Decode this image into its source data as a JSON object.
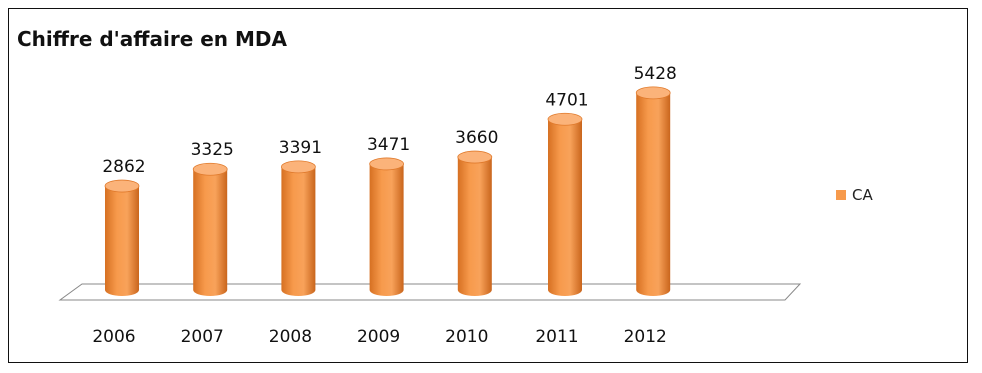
{
  "chart_data": {
    "type": "bar",
    "title": "Chiffre d'affaire en MDA",
    "categories": [
      "2006",
      "2007",
      "2008",
      "2009",
      "2010",
      "2011",
      "2012"
    ],
    "series": [
      {
        "name": "CA",
        "values": [
          2862,
          3325,
          3391,
          3471,
          3660,
          4701,
          5428
        ]
      }
    ],
    "xlabel": "",
    "ylabel": "",
    "ylim": [
      0,
      5600
    ],
    "grid": false,
    "legend": "right",
    "colors": {
      "bar": "#f79a4c",
      "bar_dark": "#d8742a",
      "bar_top": "#fbb37a",
      "floor": "#ffffff",
      "floor_edge": "#888888"
    }
  }
}
